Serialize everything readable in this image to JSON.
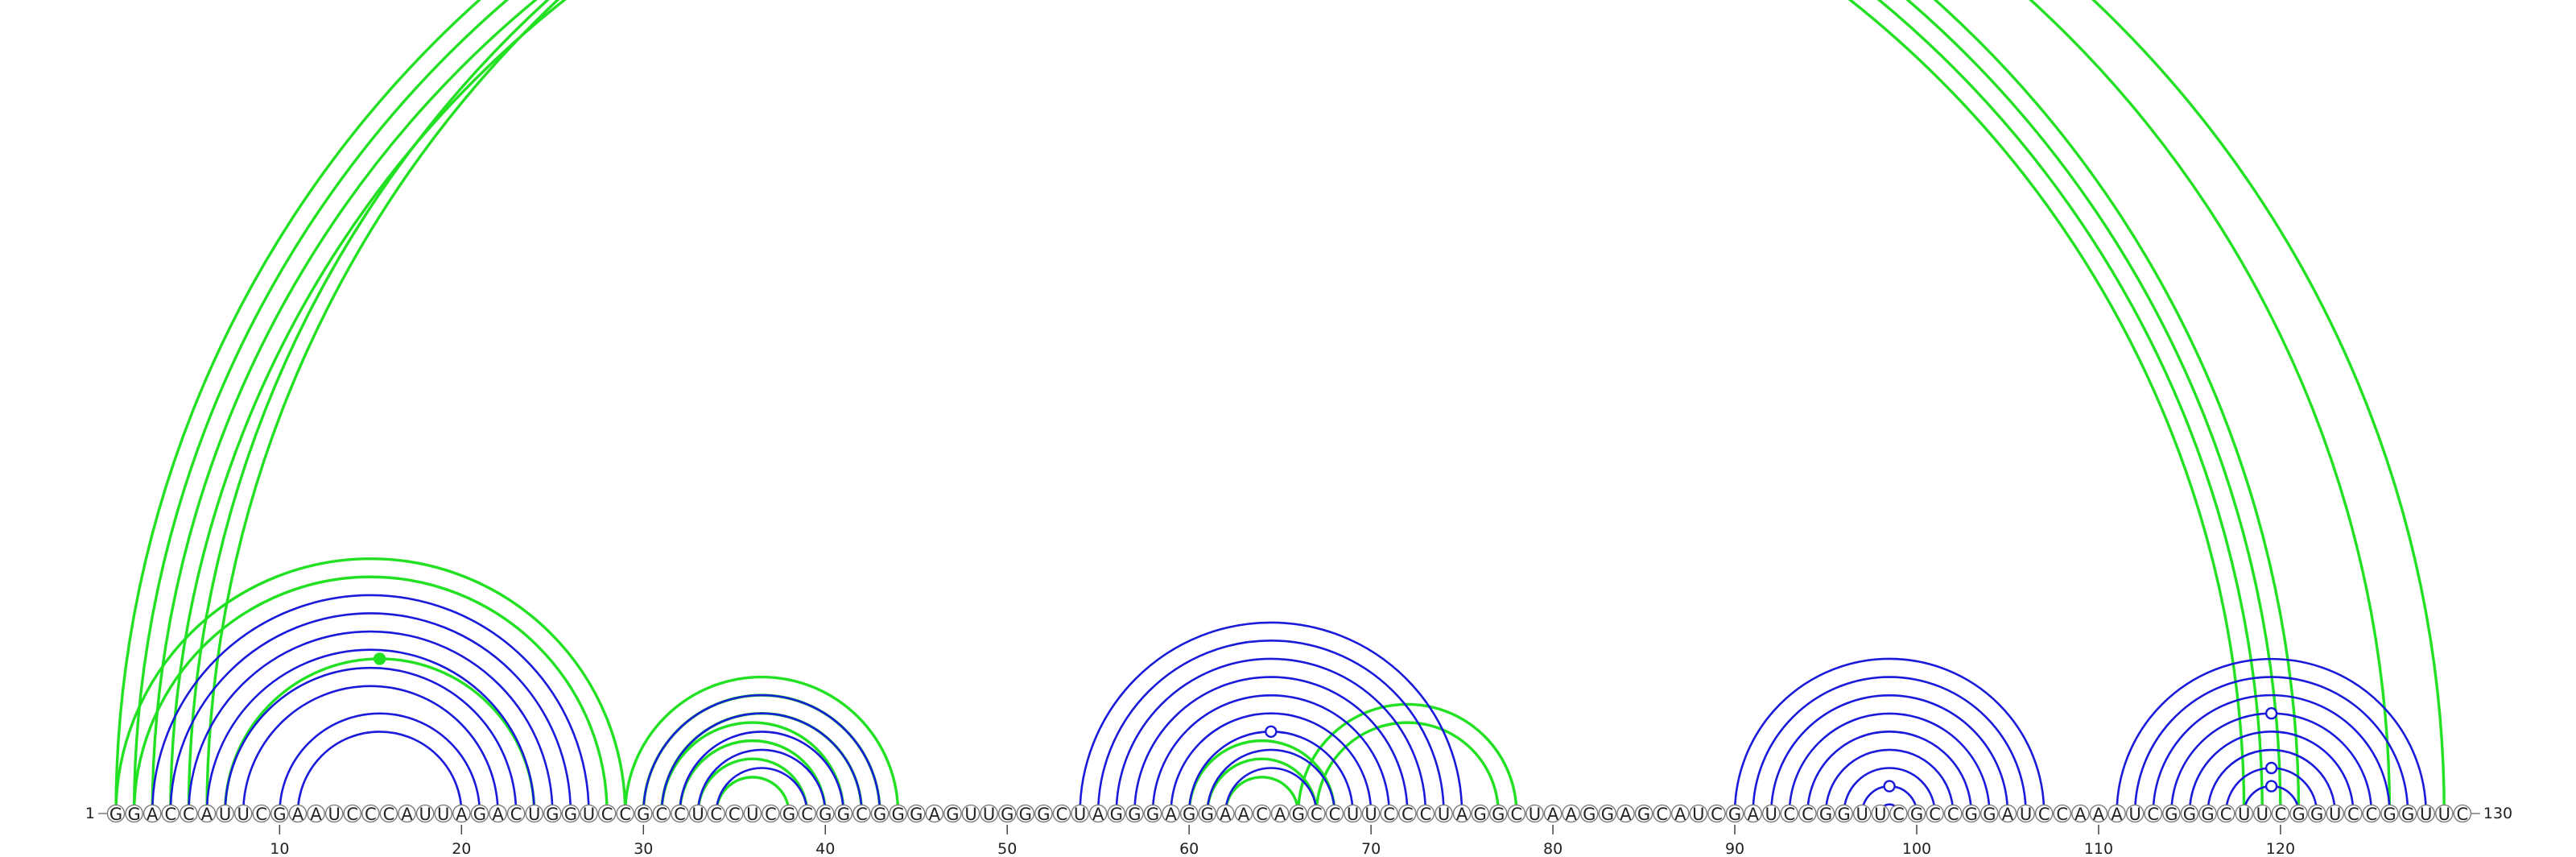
{
  "sequence": "GGACCAUUCGAAUCCCAUUAGACUGGUCCGCCUCCUCGCGGCGGGAGUUGGGCUAGGGAGGAACAGCCUUCCCUAGGCUAAGGAGCAUCGAUCCGGUUCGCCGGAUCCAAAUCGGGCUUCGGUCCGGUUC",
  "start_label": "1",
  "end_label": "130",
  "ticks": [
    10,
    20,
    30,
    40,
    50,
    60,
    70,
    80,
    90,
    100,
    110,
    120
  ],
  "colors": {
    "blue": "#1a1adb",
    "green": "#22e022",
    "backbone": "#7a7a7a"
  },
  "blue_helices": [
    {
      "i": 3,
      "j": 27,
      "n": 6
    },
    {
      "i": 10,
      "j": 21,
      "n": 2
    },
    {
      "i": 30,
      "j": 43,
      "n": 5
    },
    {
      "i": 54,
      "j": 75,
      "n": 9
    },
    {
      "i": 90,
      "j": 107,
      "n": 9
    },
    {
      "i": 111,
      "j": 128,
      "n": 8
    }
  ],
  "green_helices": [
    {
      "i": 1,
      "j": 121,
      "n": 4
    },
    {
      "i": 5,
      "j": 126,
      "n": 1
    },
    {
      "i": 6,
      "j": 129,
      "n": 1
    },
    {
      "i": 1,
      "j": 29,
      "n": 1
    },
    {
      "i": 2,
      "j": 28,
      "n": 1
    },
    {
      "i": 7,
      "j": 24,
      "n": 1
    },
    {
      "i": 29,
      "j": 44,
      "n": 3
    },
    {
      "i": 31,
      "j": 41,
      "n": 2
    },
    {
      "i": 33,
      "j": 39,
      "n": 2
    },
    {
      "i": 60,
      "j": 68,
      "n": 3
    },
    {
      "i": 66,
      "j": 78,
      "n": 2
    }
  ],
  "markers": [
    {
      "x": 65.5,
      "height_from": 6,
      "height_to": 129,
      "color": "green",
      "filled": false
    },
    {
      "x": 15.5,
      "height_from": 7,
      "height_to": 24,
      "color": "green",
      "filled": true
    },
    {
      "x": 64.5,
      "height_from": 60,
      "height_to": 69,
      "color": "blue",
      "filled": false
    },
    {
      "x": 98.5,
      "height_from": 97,
      "height_to": 100,
      "color": "blue",
      "filled": false
    },
    {
      "x": 119.5,
      "height_from": 114,
      "height_to": 125,
      "color": "blue",
      "filled": false
    },
    {
      "x": 119.5,
      "height_from": 117,
      "height_to": 122,
      "color": "blue",
      "filled": false
    },
    {
      "x": 119.5,
      "height_from": 118,
      "height_to": 121,
      "color": "blue",
      "filled": false
    }
  ]
}
